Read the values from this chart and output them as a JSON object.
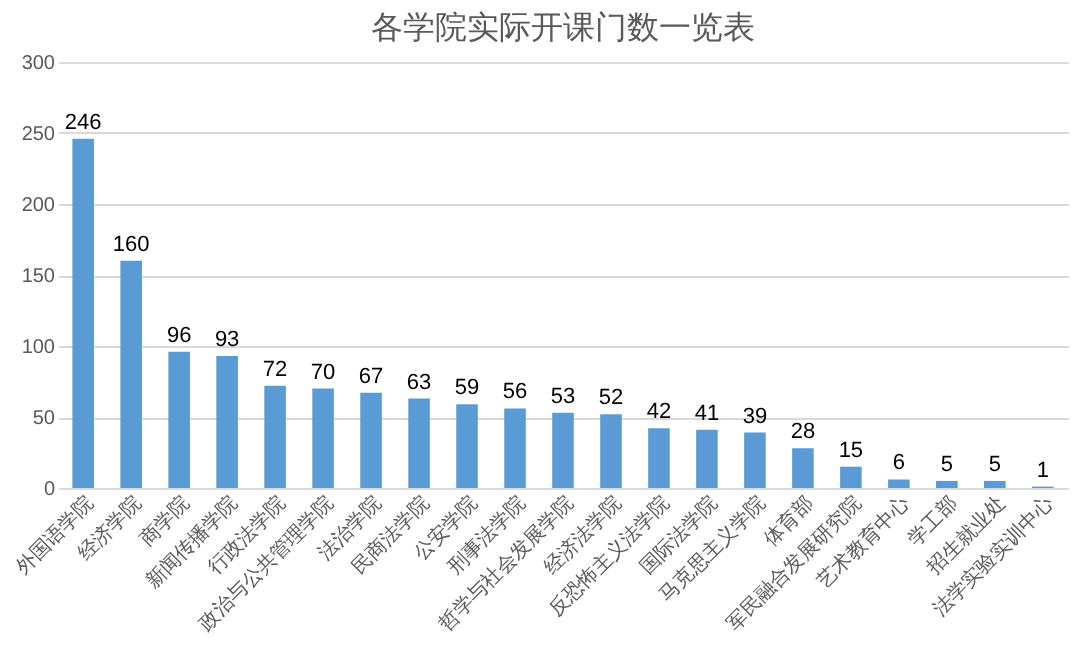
{
  "chart_data": {
    "type": "bar",
    "title": "各学院实际开课门数一览表",
    "categories": [
      "外国语学院",
      "经济学院",
      "商学院",
      "新闻传播学院",
      "行政法学院",
      "政治与公共管理学院",
      "法治学院",
      "民商法学院",
      "公安学院",
      "刑事法学院",
      "哲学与社会发展学院",
      "经济法学院",
      "反恐怖主义法学院",
      "国际法学院",
      "马克思主义学院",
      "体育部",
      "军民融合发展研究院",
      "艺术教育中心",
      "学工部",
      "招生就业处",
      "法学实验实训中心"
    ],
    "values": [
      246,
      160,
      96,
      93,
      72,
      70,
      67,
      63,
      59,
      56,
      53,
      52,
      42,
      41,
      39,
      28,
      15,
      6,
      5,
      5,
      1
    ],
    "color": "#5b9bd5",
    "ylim": [
      0,
      300
    ],
    "yticks": [
      0,
      50,
      100,
      150,
      200,
      250,
      300
    ],
    "grid": "y",
    "data_labels": true
  }
}
